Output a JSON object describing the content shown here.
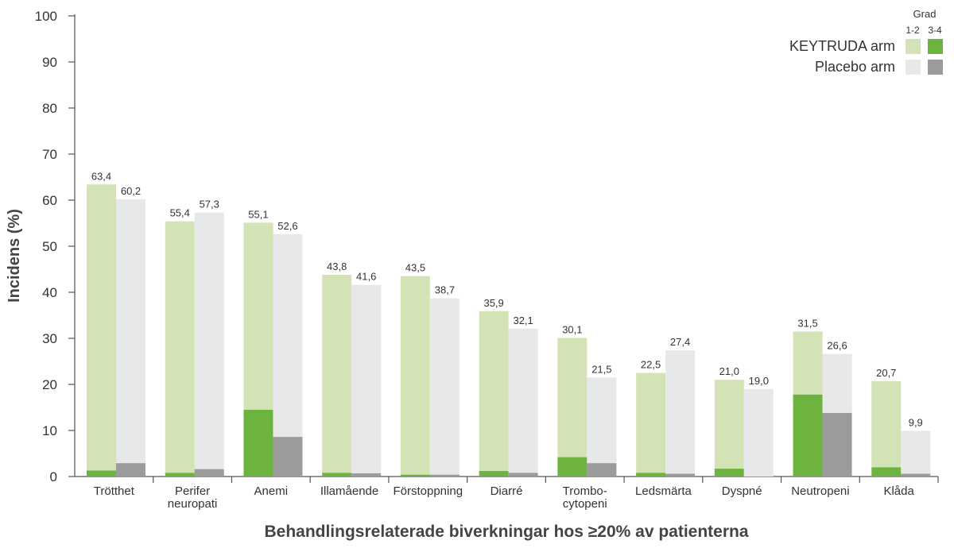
{
  "chart_data": {
    "type": "bar",
    "xlabel": "Behandlingsrelaterade biverkningar hos ≥20% av patienterna",
    "ylabel": "Incidens (%)",
    "ylim": [
      0,
      100
    ],
    "yticks": [
      "0",
      "10",
      "20",
      "30",
      "40",
      "50",
      "60",
      "70",
      "80",
      "90",
      "100"
    ],
    "categories": [
      [
        "Trötthet"
      ],
      [
        "Perifer",
        "neuropati"
      ],
      [
        "Anemi"
      ],
      [
        "Illamående"
      ],
      [
        "Förstoppning"
      ],
      [
        "Diarré"
      ],
      [
        "Trombo-",
        "cytopeni"
      ],
      [
        "Ledsmärta"
      ],
      [
        "Dyspné"
      ],
      [
        "Neutropeni"
      ],
      [
        "Klåda"
      ]
    ],
    "series": [
      {
        "name": "KEYTRUDA arm",
        "total": [
          63.4,
          55.4,
          55.1,
          43.8,
          43.5,
          35.9,
          30.1,
          22.5,
          21.0,
          31.5,
          20.7
        ],
        "total_labels": [
          "63,4",
          "55,4",
          "55,1",
          "43,8",
          "43,5",
          "35,9",
          "30,1",
          "22,5",
          "21,0",
          "31,5",
          "20,7"
        ],
        "grade_3_4": [
          1.3,
          0.8,
          14.5,
          0.8,
          0.4,
          1.2,
          4.2,
          0.8,
          1.7,
          17.8,
          2.0
        ],
        "color_grade_1_2": "#d3e3b6",
        "color_grade_3_4": "#6db33f"
      },
      {
        "name": "Placebo arm",
        "total": [
          60.2,
          57.3,
          52.6,
          41.6,
          38.7,
          32.1,
          21.5,
          27.4,
          19.0,
          26.6,
          9.9
        ],
        "total_labels": [
          "60,2",
          "57,3",
          "52,6",
          "41,6",
          "38,7",
          "32,1",
          "21,5",
          "27,4",
          "19,0",
          "26,6",
          "9,9"
        ],
        "grade_3_4": [
          2.9,
          1.6,
          8.6,
          0.7,
          0.4,
          0.8,
          2.9,
          0.6,
          0.0,
          13.8,
          0.6
        ],
        "color_grade_1_2": "#e6e8ea",
        "color_grade_3_4": "#9b9b9b"
      }
    ],
    "legend": {
      "placement": "top-right",
      "title": "Grad",
      "grade_labels": [
        "1-2",
        "3-4"
      ],
      "entries": [
        "KEYTRUDA arm",
        "Placebo arm"
      ]
    },
    "grid": false
  }
}
